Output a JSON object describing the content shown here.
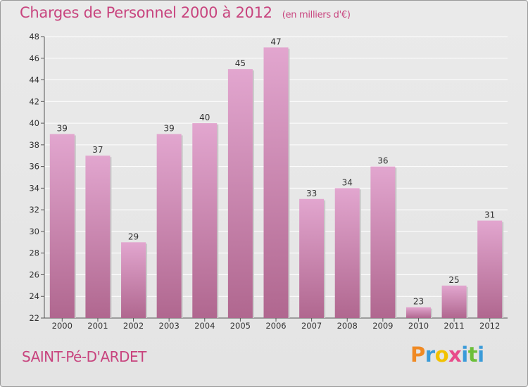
{
  "chart_data": {
    "type": "bar",
    "title": "Charges de Personnel 2000 à 2012",
    "subtitle": "(en milliers d'€)",
    "categories": [
      "2000",
      "2001",
      "2002",
      "2003",
      "2004",
      "2005",
      "2006",
      "2007",
      "2008",
      "2009",
      "2010",
      "2011",
      "2012"
    ],
    "values": [
      39,
      37,
      29,
      39,
      40,
      45,
      47,
      33,
      34,
      36,
      23,
      25,
      31
    ],
    "ylim": [
      22,
      48
    ],
    "yticks": [
      22,
      24,
      26,
      28,
      30,
      32,
      34,
      36,
      38,
      40,
      42,
      44,
      46,
      48
    ],
    "grid": true,
    "colors": {
      "bar_top": "#e2a6cf",
      "bar_bottom": "#b0678f",
      "grid": "#ffffff",
      "text": "#333333"
    }
  },
  "commune": "SAINT-Pé-D'ARDET",
  "logo": {
    "letters": [
      "P",
      "r",
      "o",
      "x",
      "i",
      "t",
      "i"
    ],
    "colors": [
      "#f08a24",
      "#3a9bd9",
      "#f2c200",
      "#e84b8a",
      "#3a9bd9",
      "#6cbf3a",
      "#3a9bd9"
    ]
  }
}
